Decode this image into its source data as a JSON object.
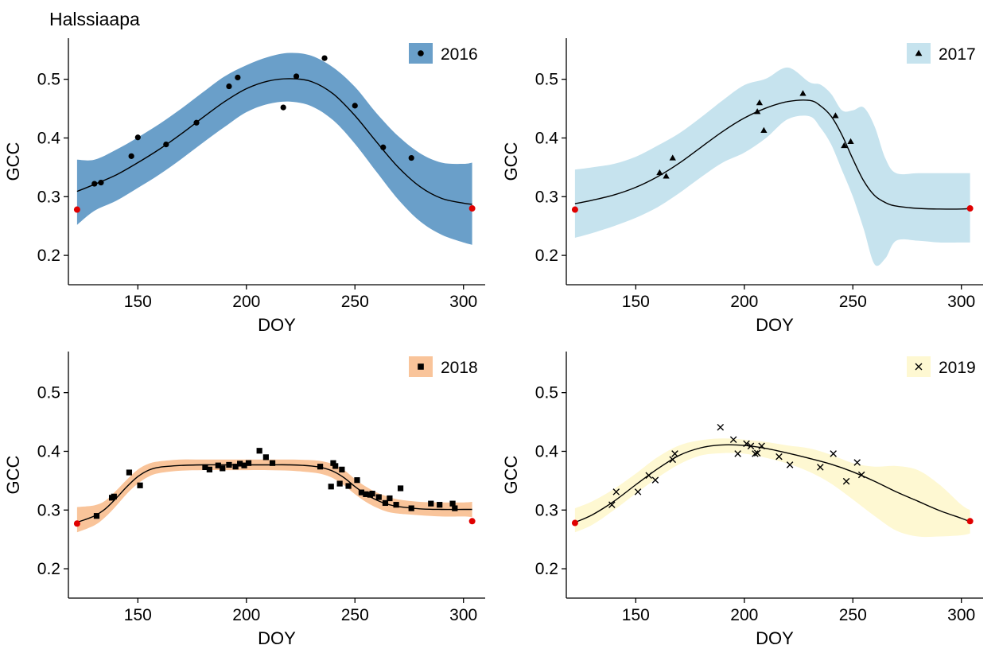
{
  "title": "Halssiaapa",
  "chart_data": [
    {
      "type": "line",
      "panel": "2016",
      "xlabel": "DOY",
      "ylabel": "GCC",
      "xlim": [
        118,
        310
      ],
      "ylim": [
        0.15,
        0.57
      ],
      "xticks": [
        150,
        200,
        250,
        300
      ],
      "yticks": [
        0.2,
        0.3,
        0.4,
        0.5
      ],
      "legend": {
        "label": "2016",
        "marker": "circle",
        "position": "top-right"
      },
      "band_color": "#6a9fc9",
      "curve": {
        "x": [
          122,
          130,
          140,
          150,
          160,
          170,
          180,
          190,
          200,
          210,
          220,
          230,
          240,
          250,
          260,
          270,
          280,
          290,
          300,
          304
        ],
        "y": [
          0.309,
          0.321,
          0.337,
          0.358,
          0.381,
          0.407,
          0.435,
          0.462,
          0.484,
          0.497,
          0.501,
          0.496,
          0.475,
          0.438,
          0.393,
          0.35,
          0.317,
          0.297,
          0.289,
          0.287
        ],
        "lower": [
          0.252,
          0.276,
          0.293,
          0.315,
          0.338,
          0.364,
          0.392,
          0.419,
          0.444,
          0.458,
          0.462,
          0.454,
          0.43,
          0.39,
          0.342,
          0.295,
          0.258,
          0.235,
          0.222,
          0.218
        ],
        "upper": [
          0.363,
          0.363,
          0.38,
          0.401,
          0.424,
          0.45,
          0.478,
          0.505,
          0.524,
          0.538,
          0.545,
          0.54,
          0.52,
          0.487,
          0.442,
          0.403,
          0.374,
          0.358,
          0.356,
          0.358
        ]
      },
      "points": {
        "x": [
          130,
          133,
          147,
          150,
          163,
          177,
          192,
          196,
          217,
          223,
          236,
          250,
          263,
          276
        ],
        "y": [
          0.322,
          0.324,
          0.369,
          0.401,
          0.389,
          0.426,
          0.488,
          0.503,
          0.452,
          0.505,
          0.536,
          0.455,
          0.384,
          0.366
        ]
      },
      "anchors": {
        "x": [
          122,
          304
        ],
        "y": [
          0.278,
          0.28
        ]
      }
    },
    {
      "type": "line",
      "panel": "2017",
      "xlabel": "DOY",
      "ylabel": "GCC",
      "xlim": [
        118,
        310
      ],
      "ylim": [
        0.15,
        0.57
      ],
      "xticks": [
        150,
        200,
        250,
        300
      ],
      "yticks": [
        0.2,
        0.3,
        0.4,
        0.5
      ],
      "legend": {
        "label": "2017",
        "marker": "triangle",
        "position": "top-right"
      },
      "band_color": "#c6e3ee",
      "curve": {
        "x": [
          122,
          130,
          140,
          150,
          160,
          170,
          180,
          190,
          200,
          210,
          220,
          230,
          235,
          240,
          245,
          250,
          255,
          260,
          265,
          270,
          280,
          290,
          300,
          304
        ],
        "y": [
          0.288,
          0.294,
          0.303,
          0.316,
          0.334,
          0.357,
          0.384,
          0.411,
          0.434,
          0.451,
          0.462,
          0.464,
          0.455,
          0.437,
          0.405,
          0.364,
          0.327,
          0.302,
          0.29,
          0.284,
          0.28,
          0.279,
          0.279,
          0.28
        ],
        "lower": [
          0.23,
          0.238,
          0.25,
          0.264,
          0.282,
          0.306,
          0.333,
          0.358,
          0.375,
          0.4,
          0.432,
          0.437,
          0.418,
          0.389,
          0.345,
          0.3,
          0.245,
          0.185,
          0.195,
          0.225,
          0.225,
          0.222,
          0.222,
          0.222
        ],
        "upper": [
          0.346,
          0.35,
          0.356,
          0.368,
          0.387,
          0.408,
          0.435,
          0.464,
          0.49,
          0.501,
          0.52,
          0.495,
          0.491,
          0.475,
          0.447,
          0.447,
          0.452,
          0.42,
          0.365,
          0.34,
          0.34,
          0.34,
          0.34,
          0.34
        ]
      },
      "points": {
        "x": [
          161,
          164,
          167,
          206,
          207,
          209,
          227,
          242,
          246,
          249
        ],
        "y": [
          0.341,
          0.335,
          0.366,
          0.445,
          0.46,
          0.413,
          0.476,
          0.438,
          0.387,
          0.394
        ]
      },
      "anchors": {
        "x": [
          122,
          304
        ],
        "y": [
          0.278,
          0.28
        ]
      }
    },
    {
      "type": "line",
      "panel": "2018",
      "xlabel": "DOY",
      "ylabel": "GCC",
      "xlim": [
        118,
        310
      ],
      "ylim": [
        0.15,
        0.57
      ],
      "xticks": [
        150,
        200,
        250,
        300
      ],
      "yticks": [
        0.2,
        0.3,
        0.4,
        0.5
      ],
      "legend": {
        "label": "2018",
        "marker": "square",
        "position": "top-right"
      },
      "band_color": "#f9c49a",
      "curve": {
        "x": [
          122,
          130,
          135,
          140,
          145,
          150,
          155,
          160,
          170,
          180,
          190,
          200,
          210,
          220,
          230,
          235,
          240,
          245,
          250,
          255,
          260,
          265,
          270,
          280,
          290,
          300,
          304
        ],
        "y": [
          0.279,
          0.29,
          0.302,
          0.32,
          0.34,
          0.357,
          0.368,
          0.373,
          0.376,
          0.377,
          0.377,
          0.377,
          0.377,
          0.377,
          0.375,
          0.372,
          0.366,
          0.355,
          0.34,
          0.327,
          0.317,
          0.31,
          0.306,
          0.302,
          0.301,
          0.301,
          0.301
        ],
        "lower": [
          0.262,
          0.274,
          0.288,
          0.307,
          0.328,
          0.345,
          0.357,
          0.363,
          0.367,
          0.368,
          0.368,
          0.368,
          0.368,
          0.367,
          0.364,
          0.361,
          0.354,
          0.342,
          0.327,
          0.314,
          0.304,
          0.297,
          0.294,
          0.291,
          0.289,
          0.289,
          0.288
        ],
        "upper": [
          0.305,
          0.308,
          0.316,
          0.333,
          0.352,
          0.369,
          0.379,
          0.383,
          0.386,
          0.386,
          0.386,
          0.386,
          0.386,
          0.386,
          0.385,
          0.383,
          0.378,
          0.368,
          0.353,
          0.34,
          0.33,
          0.323,
          0.318,
          0.314,
          0.313,
          0.313,
          0.314
        ]
      },
      "points": {
        "x": [
          131,
          138,
          139,
          146,
          151,
          181,
          183,
          187,
          189,
          192,
          195,
          197,
          199,
          201,
          206,
          209,
          212,
          234,
          239,
          240,
          241,
          243,
          244,
          247,
          251,
          253,
          255,
          257,
          258,
          261,
          264,
          266,
          269,
          271,
          276,
          285,
          289,
          295,
          296
        ],
        "y": [
          0.29,
          0.321,
          0.323,
          0.364,
          0.342,
          0.373,
          0.369,
          0.376,
          0.371,
          0.377,
          0.374,
          0.379,
          0.376,
          0.38,
          0.401,
          0.39,
          0.38,
          0.374,
          0.34,
          0.38,
          0.375,
          0.345,
          0.369,
          0.341,
          0.351,
          0.33,
          0.327,
          0.326,
          0.328,
          0.322,
          0.312,
          0.32,
          0.309,
          0.337,
          0.303,
          0.311,
          0.309,
          0.311,
          0.303
        ]
      },
      "anchors": {
        "x": [
          122,
          304
        ],
        "y": [
          0.277,
          0.281
        ]
      }
    },
    {
      "type": "line",
      "panel": "2019",
      "xlabel": "DOY",
      "ylabel": "GCC",
      "xlim": [
        118,
        310
      ],
      "ylim": [
        0.15,
        0.57
      ],
      "xticks": [
        150,
        200,
        250,
        300
      ],
      "yticks": [
        0.2,
        0.3,
        0.4,
        0.5
      ],
      "legend": {
        "label": "2019",
        "marker": "cross",
        "position": "top-right"
      },
      "band_color": "#fef8d2",
      "curve": {
        "x": [
          122,
          130,
          140,
          150,
          160,
          170,
          180,
          190,
          200,
          210,
          220,
          230,
          240,
          250,
          260,
          270,
          280,
          290,
          300,
          304
        ],
        "y": [
          0.279,
          0.292,
          0.315,
          0.343,
          0.37,
          0.393,
          0.406,
          0.411,
          0.41,
          0.405,
          0.397,
          0.388,
          0.378,
          0.365,
          0.349,
          0.331,
          0.315,
          0.299,
          0.286,
          0.28
        ],
        "lower": [
          0.262,
          0.275,
          0.3,
          0.328,
          0.355,
          0.378,
          0.393,
          0.397,
          0.396,
          0.389,
          0.379,
          0.365,
          0.345,
          0.318,
          0.29,
          0.265,
          0.255,
          0.255,
          0.257,
          0.26
        ],
        "upper": [
          0.303,
          0.315,
          0.336,
          0.362,
          0.39,
          0.41,
          0.419,
          0.422,
          0.42,
          0.416,
          0.41,
          0.405,
          0.394,
          0.38,
          0.374,
          0.375,
          0.368,
          0.343,
          0.309,
          0.3
        ]
      },
      "points": {
        "x": [
          139,
          141,
          151,
          156,
          159,
          167,
          168,
          189,
          195,
          197,
          201,
          203,
          205,
          206,
          208,
          216,
          221,
          235,
          241,
          247,
          252,
          254
        ],
        "y": [
          0.309,
          0.331,
          0.331,
          0.359,
          0.351,
          0.386,
          0.396,
          0.441,
          0.42,
          0.396,
          0.413,
          0.409,
          0.396,
          0.397,
          0.409,
          0.391,
          0.377,
          0.373,
          0.396,
          0.349,
          0.381,
          0.36
        ]
      },
      "anchors": {
        "x": [
          122,
          304
        ],
        "y": [
          0.278,
          0.281
        ]
      }
    }
  ]
}
